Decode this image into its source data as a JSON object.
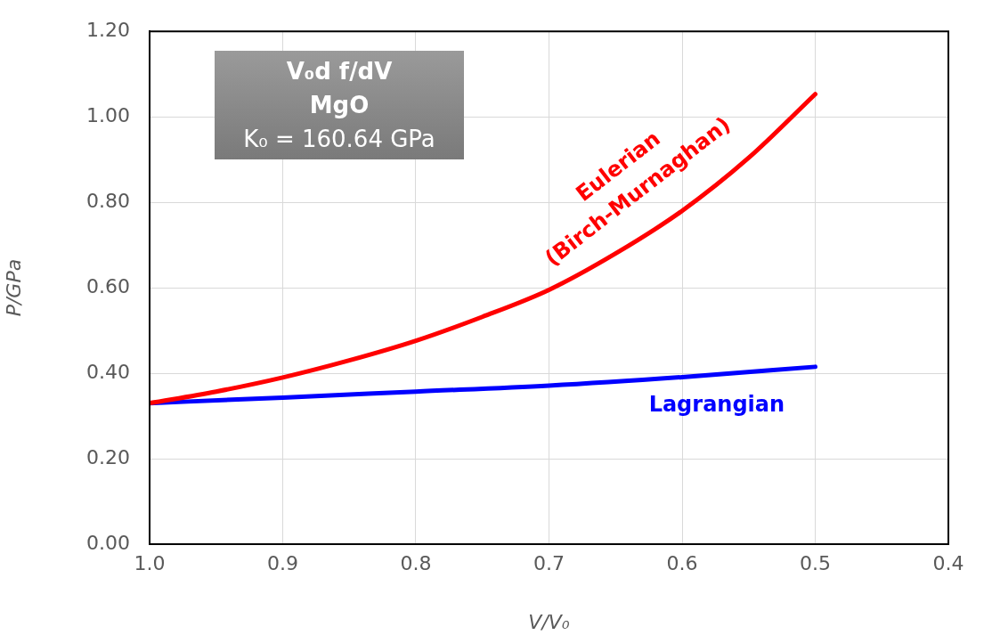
{
  "chart_data": {
    "type": "line",
    "xlabel": "V/V₀",
    "ylabel": "P/GPa",
    "annotations": [
      "V₀d f/dV",
      "MgO",
      "K₀ = 160.64 GPa"
    ],
    "xlim": [
      1.0,
      0.4
    ],
    "xticks": [
      {
        "value": 1.0,
        "label": "1.0"
      },
      {
        "value": 0.9,
        "label": "0.9"
      },
      {
        "value": 0.8,
        "label": "0.8"
      },
      {
        "value": 0.7,
        "label": "0.7"
      },
      {
        "value": 0.6,
        "label": "0.6"
      },
      {
        "value": 0.5,
        "label": "0.5"
      },
      {
        "value": 0.4,
        "label": "0.4"
      }
    ],
    "ylim": [
      0,
      1.2
    ],
    "yticks": [
      {
        "value": 0,
        "label": "0.00"
      },
      {
        "value": 0.2,
        "label": "0.20"
      },
      {
        "value": 0.4,
        "label": "0.40"
      },
      {
        "value": 0.6,
        "label": "0.60"
      },
      {
        "value": 0.8,
        "label": "0.80"
      },
      {
        "value": 1.0,
        "label": "1.00"
      },
      {
        "value": 1.2,
        "label": "1.20"
      }
    ],
    "grid": true,
    "legend": false,
    "marker": "none",
    "line_style": "solid",
    "series": [
      {
        "name": "Eulerian\n(Birch-Murnaghan)",
        "color": "#ff0000",
        "x": [
          1.0,
          0.95,
          0.9,
          0.85,
          0.8,
          0.75,
          0.7,
          0.65,
          0.6,
          0.55,
          0.5
        ],
        "values": [
          0.33,
          0.357,
          0.39,
          0.43,
          0.476,
          0.532,
          0.595,
          0.68,
          0.78,
          0.904,
          1.053
        ]
      },
      {
        "name": "Lagrangian",
        "color": "#0000ff",
        "x": [
          1.0,
          0.9,
          0.8,
          0.7,
          0.6,
          0.5
        ],
        "values": [
          0.33,
          0.343,
          0.357,
          0.371,
          0.391,
          0.415
        ]
      }
    ]
  }
}
